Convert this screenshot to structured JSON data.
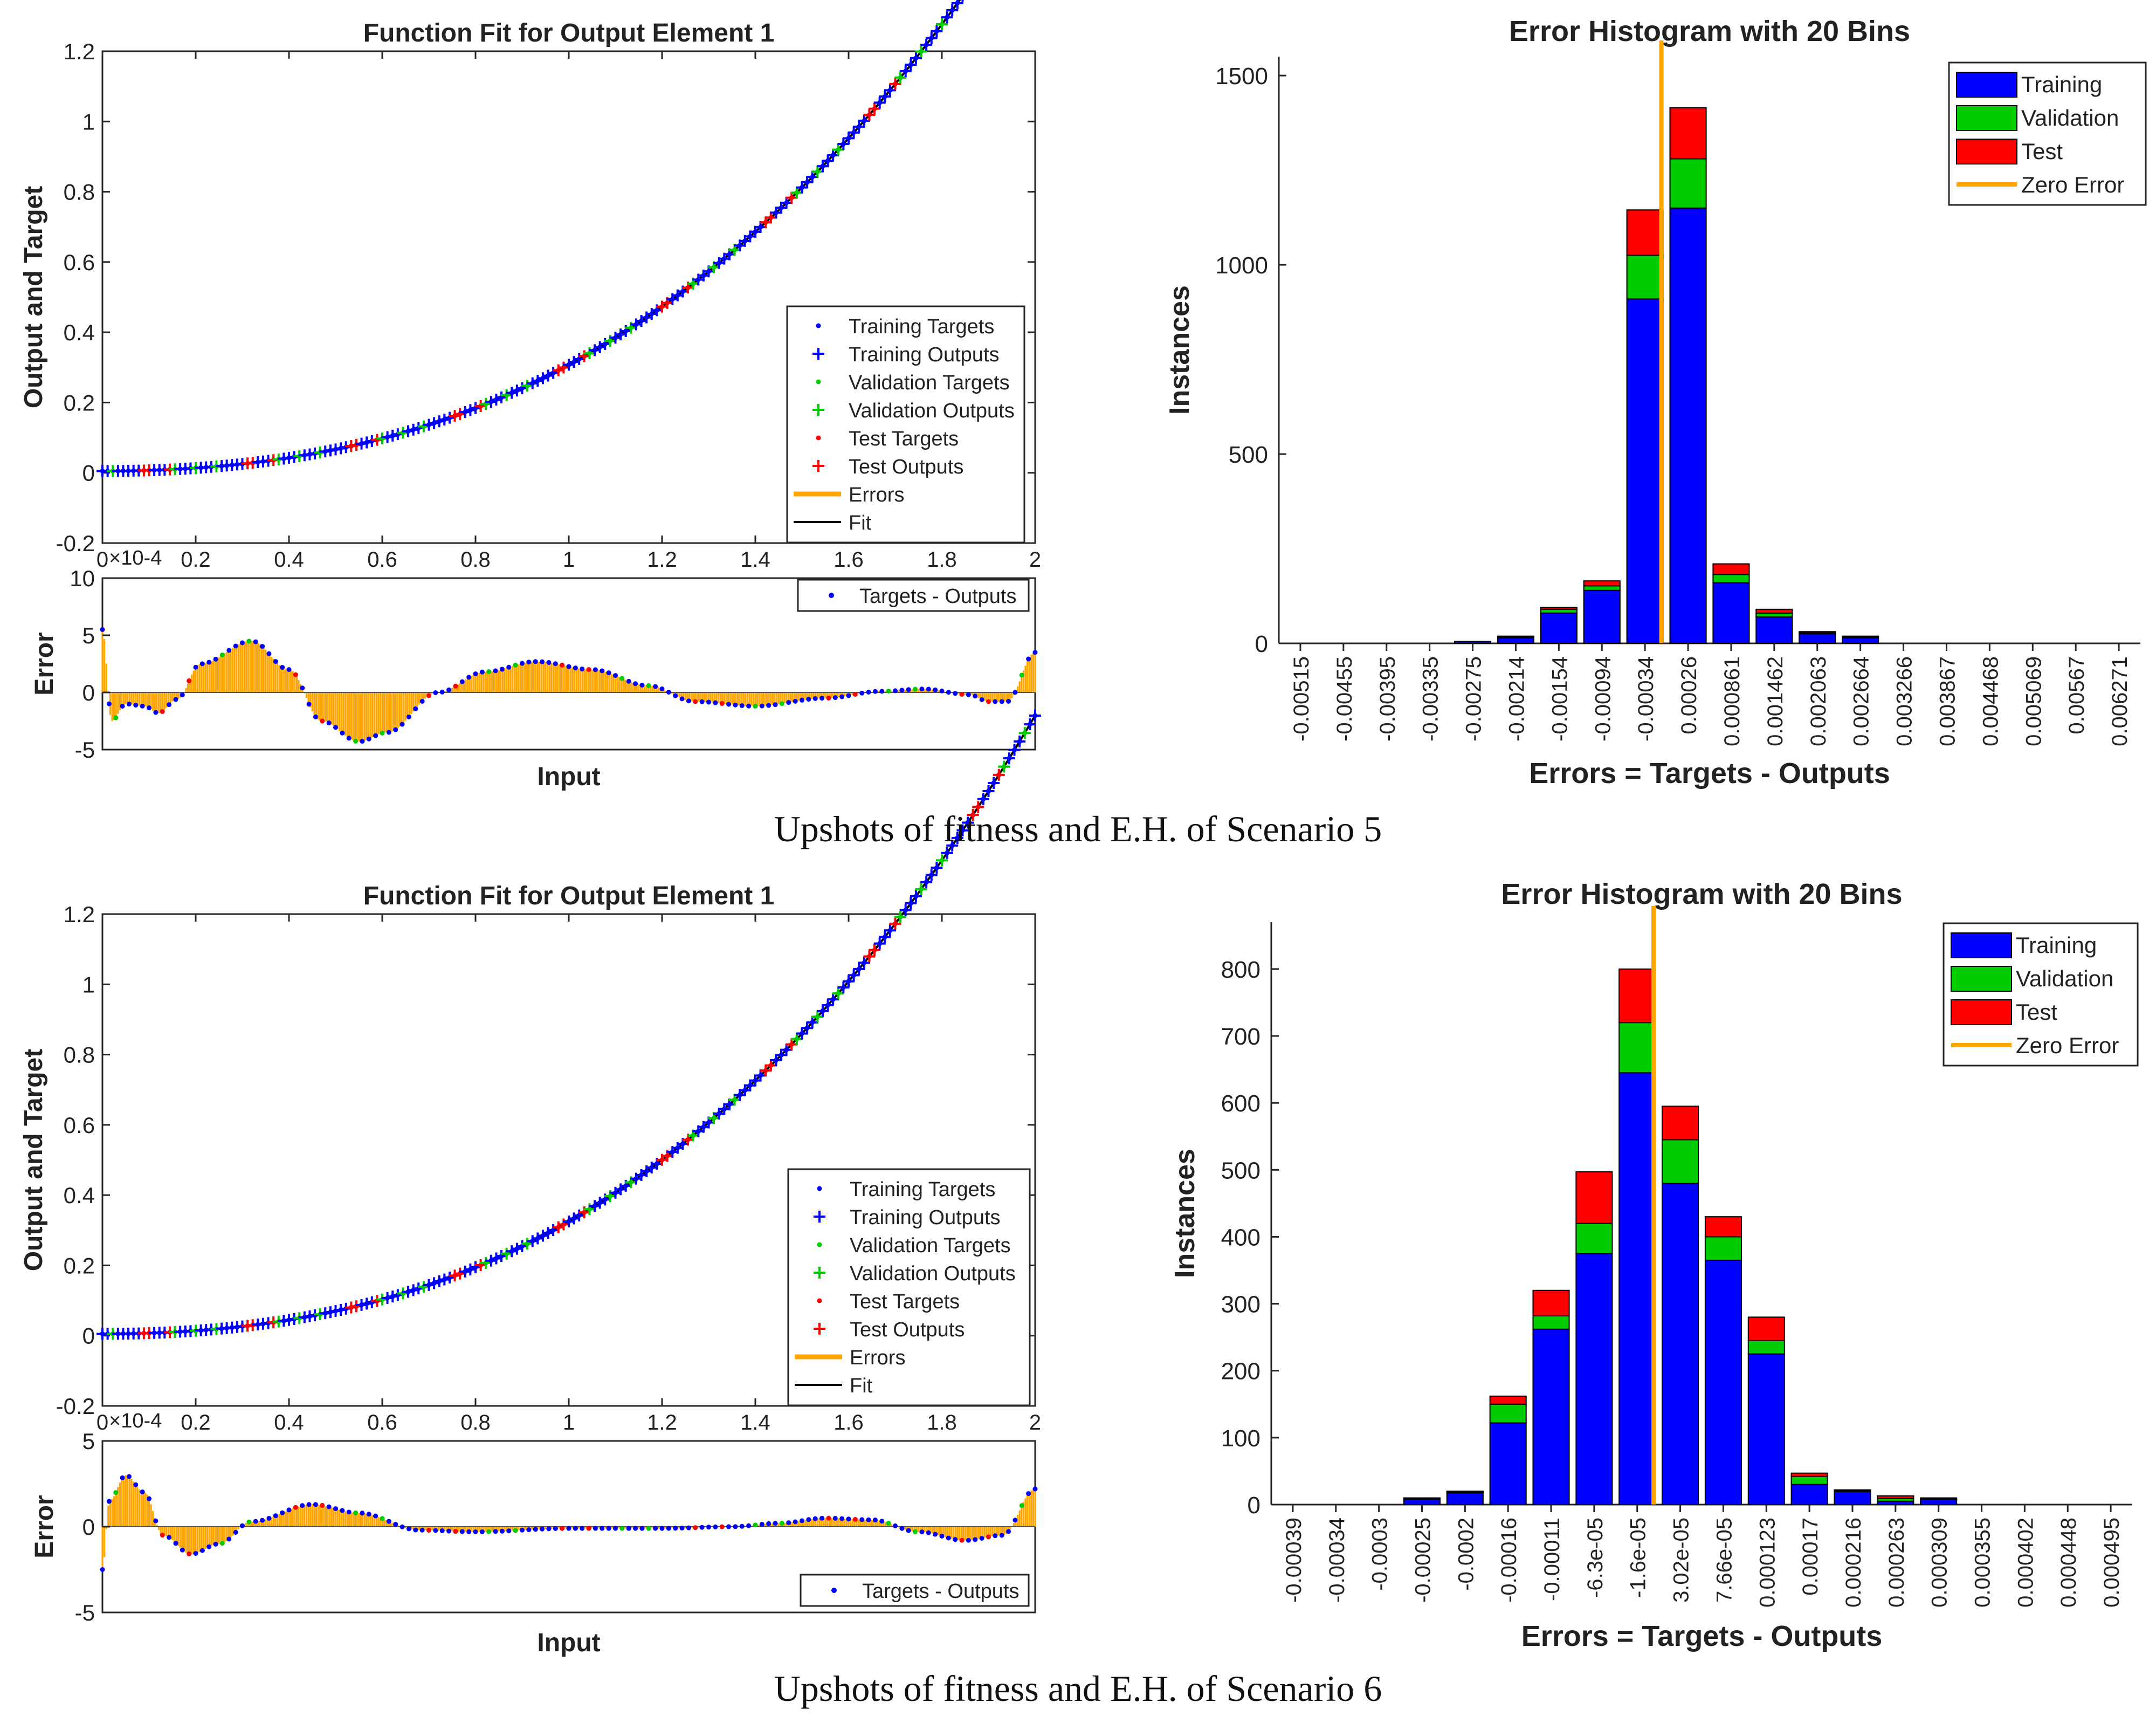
{
  "colors": {
    "training": "#0000ff",
    "validation": "#00cc00",
    "test": "#ff0000",
    "errors": "#ffa500",
    "fit": "#000000",
    "targets_outputs": "#0000ff"
  },
  "scenarios": [
    {
      "caption": "Upshots of fitness and E.H. of Scenario 5",
      "fit": {
        "title": "Function Fit for Output Element 1",
        "ylabel": "Output and Target",
        "ylim": [
          -0.2,
          1.2
        ],
        "yticks": [
          "-0.2",
          "0",
          "0.2",
          "0.4",
          "0.6",
          "0.8",
          "1",
          "1.2"
        ],
        "xlim": [
          0,
          2
        ],
        "xticks": [
          "0",
          "0.2",
          "0.4",
          "0.6",
          "0.8",
          "1",
          "1.2",
          "1.4",
          "1.6",
          "1.8",
          "2"
        ],
        "x_exponent": "×10-4",
        "curve": {
          "a": 0.19,
          "b": 0.225,
          "c": 0.005
        },
        "legend": [
          "Training Targets",
          "Training Outputs",
          "Validation Targets",
          "Validation Outputs",
          "Test Targets",
          "Test Outputs",
          "Errors",
          "Fit"
        ],
        "error_panel": {
          "ylabel": "Error",
          "xlabel": "Input",
          "ylim": [
            -5,
            10
          ],
          "yticks": [
            "-5",
            "0",
            "5",
            "10"
          ],
          "legend": "Targets - Outputs",
          "profile": [
            [
              0,
              5.5
            ],
            [
              0.02,
              -2.5
            ],
            [
              0.05,
              -1
            ],
            [
              0.09,
              -1.2
            ],
            [
              0.12,
              -1.8
            ],
            [
              0.16,
              -0.6
            ],
            [
              0.21,
              2.5
            ],
            [
              0.32,
              4.5
            ],
            [
              0.4,
              2
            ],
            [
              0.47,
              -2.5
            ],
            [
              0.55,
              -4.3
            ],
            [
              0.61,
              -3.5
            ],
            [
              0.72,
              0
            ],
            [
              0.82,
              1.8
            ],
            [
              0.93,
              2.7
            ],
            [
              1.05,
              2
            ],
            [
              1.17,
              0.6
            ],
            [
              1.27,
              -0.8
            ],
            [
              1.4,
              -1.2
            ],
            [
              1.55,
              -0.5
            ],
            [
              1.67,
              0.1
            ],
            [
              1.76,
              0.3
            ],
            [
              1.86,
              -0.2
            ],
            [
              1.9,
              -0.8
            ],
            [
              1.94,
              -0.8
            ],
            [
              2.0,
              3.5
            ]
          ]
        }
      },
      "hist": {
        "title": "Error Histogram with 20 Bins",
        "ylabel": "Instances",
        "xlabel": "Errors = Targets - Outputs",
        "ylim": [
          0,
          1550
        ],
        "yticks": [
          "0",
          "500",
          "1000",
          "1500"
        ],
        "zero_error_index": 8,
        "legend": [
          "Training",
          "Validation",
          "Test",
          "Zero Error"
        ],
        "categories": [
          "-0.00515",
          "-0.00455",
          "-0.00395",
          "-0.00335",
          "-0.00275",
          "-0.00214",
          "-0.00154",
          "-0.00094",
          "-0.00034",
          "0.00026",
          "0.000861",
          "0.001462",
          "0.002063",
          "0.002664",
          "0.003266",
          "0.003867",
          "0.004468",
          "0.005069",
          "0.00567",
          "0.006271"
        ],
        "series": [
          {
            "name": "Training",
            "values": [
              0,
              0,
              0,
              0,
              5,
              15,
              80,
              140,
              910,
              1150,
              160,
              70,
              25,
              15,
              0,
              0,
              0,
              0,
              0,
              0
            ]
          },
          {
            "name": "Validation",
            "values": [
              0,
              0,
              0,
              0,
              0,
              2,
              10,
              12,
              115,
              130,
              22,
              10,
              3,
              2,
              0,
              0,
              0,
              0,
              0,
              0
            ]
          },
          {
            "name": "Test",
            "values": [
              0,
              0,
              0,
              0,
              0,
              2,
              5,
              13,
              120,
              135,
              28,
              10,
              3,
              2,
              0,
              0,
              0,
              0,
              0,
              0
            ]
          }
        ]
      }
    },
    {
      "caption": "Upshots of fitness and E.H. of Scenario 6",
      "fit": {
        "title": "Function Fit for Output Element 1",
        "ylabel": "Output and Target",
        "ylim": [
          -0.2,
          1.2
        ],
        "yticks": [
          "-0.2",
          "0",
          "0.2",
          "0.4",
          "0.6",
          "0.8",
          "1",
          "1.2"
        ],
        "xlim": [
          0,
          2
        ],
        "xticks": [
          "0",
          "0.2",
          "0.4",
          "0.6",
          "0.8",
          "1",
          "1.2",
          "1.4",
          "1.6",
          "1.8",
          "2"
        ],
        "x_exponent": "×10-4",
        "curve": {
          "a": 0.2,
          "b": 0.24,
          "c": 0.005
        },
        "legend": [
          "Training Targets",
          "Training Outputs",
          "Validation Targets",
          "Validation Outputs",
          "Test Targets",
          "Test Outputs",
          "Errors",
          "Fit"
        ],
        "error_panel": {
          "ylabel": "Error",
          "xlabel": "Input",
          "ylim": [
            -5,
            5
          ],
          "yticks": [
            "-5",
            "0",
            "5"
          ],
          "legend": "Targets - Outputs",
          "profile": [
            [
              0,
              -2.5
            ],
            [
              0.015,
              1.5
            ],
            [
              0.05,
              3
            ],
            [
              0.09,
              2
            ],
            [
              0.13,
              -0.5
            ],
            [
              0.19,
              -1.6
            ],
            [
              0.25,
              -1
            ],
            [
              0.32,
              0.3
            ],
            [
              0.45,
              1.3
            ],
            [
              0.55,
              0.8
            ],
            [
              0.68,
              -0.2
            ],
            [
              0.8,
              -0.3
            ],
            [
              1.0,
              -0.1
            ],
            [
              1.2,
              -0.1
            ],
            [
              1.35,
              0
            ],
            [
              1.45,
              0.2
            ],
            [
              1.55,
              0.5
            ],
            [
              1.65,
              0.4
            ],
            [
              1.75,
              -0.3
            ],
            [
              1.85,
              -0.8
            ],
            [
              1.93,
              -0.5
            ],
            [
              2.0,
              2.2
            ]
          ]
        }
      },
      "hist": {
        "title": "Error Histogram with 20 Bins",
        "ylabel": "Instances",
        "xlabel": "Errors = Targets - Outputs",
        "ylim": [
          0,
          870
        ],
        "yticks": [
          "0",
          "100",
          "200",
          "300",
          "400",
          "500",
          "600",
          "700",
          "800"
        ],
        "zero_error_index": 8,
        "legend": [
          "Training",
          "Validation",
          "Test",
          "Zero Error"
        ],
        "categories": [
          "-0.00039",
          "-0.00034",
          "-0.0003",
          "-0.00025",
          "-0.0002",
          "-0.00016",
          "-0.00011",
          "-6.3e-05",
          "-1.6e-05",
          "3.02e-05",
          "7.66e-05",
          "0.000123",
          "0.00017",
          "0.000216",
          "0.000263",
          "0.000309",
          "0.000355",
          "0.000402",
          "0.000448",
          "0.000495"
        ],
        "series": [
          {
            "name": "Training",
            "values": [
              0,
              0,
              0,
              8,
              18,
              122,
              262,
              375,
              645,
              480,
              365,
              225,
              30,
              20,
              5,
              8,
              0,
              0,
              0,
              0
            ]
          },
          {
            "name": "Validation",
            "values": [
              0,
              0,
              0,
              1,
              1,
              28,
              20,
              45,
              75,
              65,
              35,
              20,
              12,
              1,
              4,
              1,
              0,
              0,
              0,
              0
            ]
          },
          {
            "name": "Test",
            "values": [
              0,
              0,
              0,
              1,
              1,
              12,
              38,
              77,
              80,
              50,
              30,
              35,
              5,
              1,
              4,
              1,
              0,
              0,
              0,
              0
            ]
          }
        ]
      }
    }
  ]
}
